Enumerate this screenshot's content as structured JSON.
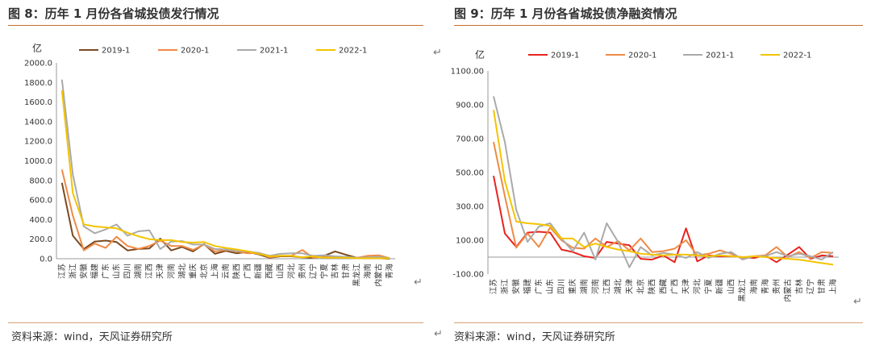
{
  "charts": [
    {
      "title": "图 8：历年 1 月份各省城投债发行情况",
      "source": "资料来源：wind，天风证券研究所",
      "chart_data": {
        "type": "line",
        "unit_label": "亿",
        "ylim": [
          0,
          2000
        ],
        "ytick_step": 200,
        "ytick_decimals": 1,
        "legend_position": "top",
        "grid": false,
        "categories": [
          "江苏",
          "浙江",
          "安徽",
          "福建",
          "广东",
          "山东",
          "四川",
          "湖南",
          "江西",
          "天津",
          "河南",
          "湖北",
          "重庆",
          "北京",
          "上海",
          "云南",
          "陕西",
          "广西",
          "新疆",
          "西藏",
          "山西",
          "河北",
          "贵州",
          "辽宁",
          "宁夏",
          "吉林",
          "甘肃",
          "黑龙江",
          "海南",
          "内蒙古",
          "青海"
        ],
        "series": [
          {
            "name": "2019-1",
            "color": "#7b4a1f",
            "values": [
              775,
              235,
              100,
              175,
              185,
              170,
              85,
              100,
              105,
              205,
              85,
              120,
              75,
              150,
              50,
              80,
              55,
              70,
              45,
              10,
              25,
              25,
              15,
              10,
              30,
              75,
              40,
              10,
              5,
              5,
              0
            ]
          },
          {
            "name": "2020-1",
            "color": "#ef8a45",
            "values": [
              910,
              440,
              85,
              155,
              110,
              225,
              130,
              100,
              130,
              185,
              130,
              130,
              90,
              145,
              75,
              90,
              75,
              55,
              60,
              15,
              30,
              30,
              90,
              10,
              20,
              20,
              15,
              10,
              30,
              35,
              5
            ]
          },
          {
            "name": "2021-1",
            "color": "#aaaaaa",
            "values": [
              1830,
              860,
              330,
              260,
              300,
              350,
              235,
              280,
              290,
              100,
              175,
              180,
              145,
              145,
              100,
              95,
              80,
              75,
              60,
              30,
              50,
              55,
              55,
              30,
              35,
              25,
              20,
              10,
              15,
              20,
              5
            ]
          },
          {
            "name": "2022-1",
            "color": "#f4c400",
            "values": [
              1720,
              670,
              350,
              330,
              320,
              310,
              265,
              230,
              200,
              190,
              190,
              170,
              165,
              170,
              130,
              110,
              95,
              75,
              50,
              25,
              30,
              30,
              15,
              25,
              10,
              10,
              10,
              5,
              5,
              5,
              5
            ]
          }
        ]
      }
    },
    {
      "title": "图 9：历年 1 月份各省城投债净融资情况",
      "source": "资料来源：wind，天风证券研究所",
      "chart_data": {
        "type": "line",
        "unit_label": "亿",
        "ylim": [
          -100,
          1100
        ],
        "ytick_step": 200,
        "ytick_decimals": 2,
        "legend_position": "top",
        "grid": false,
        "categories": [
          "江苏",
          "浙江",
          "安徽",
          "福建",
          "广东",
          "山东",
          "四川",
          "重庆",
          "湖南",
          "河南",
          "江西",
          "湖北",
          "天津",
          "北京",
          "陕西",
          "西藏",
          "广西",
          "天津",
          "河北",
          "宁夏",
          "新疆",
          "山西",
          "黑龙江",
          "海南",
          "青海",
          "贵州",
          "内蒙古",
          "吉林",
          "辽宁",
          "甘肃",
          "上海"
        ],
        "series": [
          {
            "name": "2019-1",
            "color": "#e8231e",
            "values": [
              480,
              140,
              60,
              145,
              150,
              145,
              45,
              30,
              5,
              -5,
              90,
              80,
              70,
              -10,
              -15,
              10,
              -30,
              170,
              -25,
              10,
              5,
              5,
              0,
              -5,
              10,
              -30,
              15,
              60,
              -10,
              10,
              5
            ]
          },
          {
            "name": "2020-1",
            "color": "#ef8a45",
            "values": [
              680,
              360,
              55,
              140,
              60,
              175,
              100,
              55,
              50,
              110,
              60,
              95,
              40,
              110,
              30,
              35,
              50,
              100,
              10,
              20,
              40,
              20,
              -10,
              5,
              10,
              60,
              0,
              30,
              -5,
              30,
              25
            ]
          },
          {
            "name": "2021-1",
            "color": "#aaaaaa",
            "values": [
              950,
              680,
              280,
              90,
              180,
              200,
              110,
              35,
              145,
              -15,
              200,
              90,
              -60,
              60,
              10,
              25,
              15,
              -5,
              30,
              -5,
              20,
              30,
              -15,
              5,
              5,
              30,
              5,
              20,
              5,
              -15,
              30
            ]
          },
          {
            "name": "2022-1",
            "color": "#f4c400",
            "values": [
              870,
              450,
              210,
              200,
              195,
              185,
              110,
              110,
              60,
              80,
              60,
              45,
              35,
              20,
              15,
              10,
              15,
              15,
              10,
              5,
              10,
              5,
              0,
              5,
              0,
              -5,
              -10,
              -15,
              -25,
              -35,
              -45
            ]
          }
        ]
      }
    }
  ]
}
